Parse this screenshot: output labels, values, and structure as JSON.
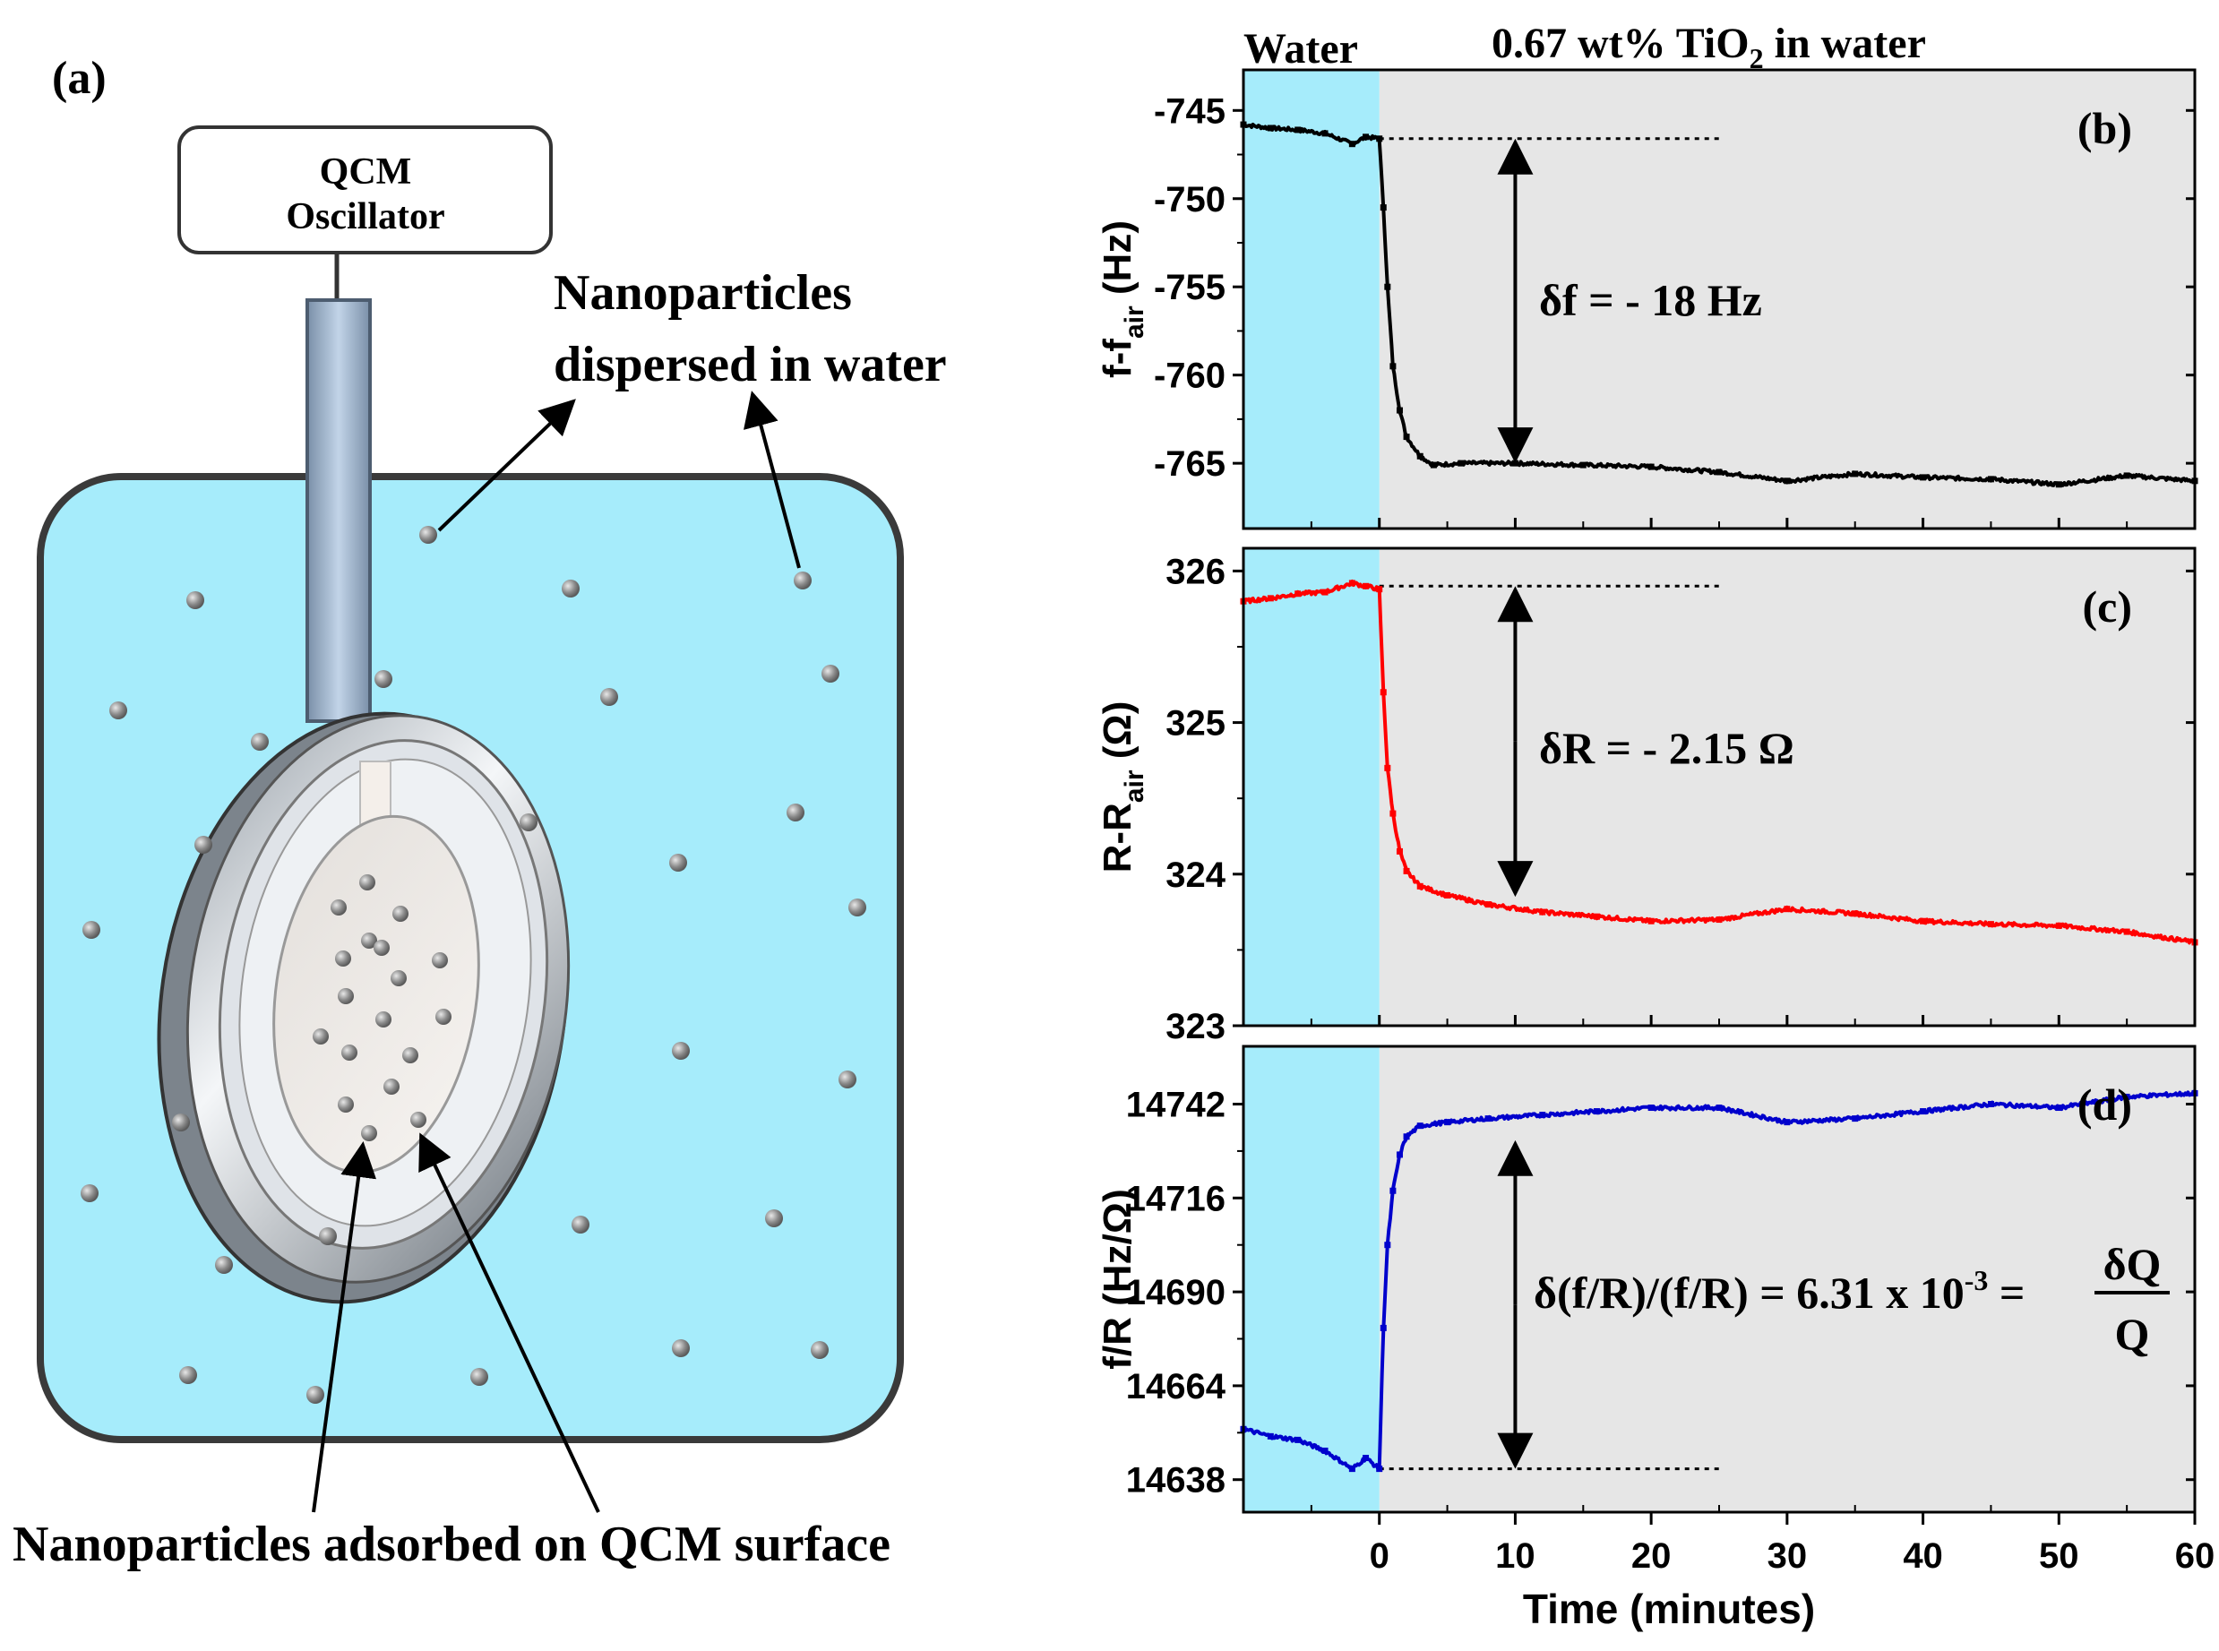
{
  "panel_a": {
    "label": "(a)",
    "oscillator_line1": "QCM",
    "oscillator_line2": "Oscillator",
    "dispersed_line1": "Nanoparticles",
    "dispersed_line2": "dispersed in water",
    "adsorbed_label": "Nanoparticles adsorbed on QCM surface"
  },
  "colors": {
    "water": "#a6ecfb",
    "shaded": "#e6e6e6",
    "frequency": "#000000",
    "resistance": "#ff0000",
    "ratio": "#0000cc"
  },
  "chart_data": {
    "type": "line",
    "top_labels": {
      "water": "Water",
      "solution_prefix": "0.67 wt% TiO",
      "solution_sub": "2",
      "solution_suffix": " in water"
    },
    "xlabel": "Time (minutes)",
    "xlim": [
      -10,
      60
    ],
    "xticks": [
      0,
      10,
      20,
      30,
      40,
      50,
      60
    ],
    "water_region": [
      -10,
      0
    ],
    "panels": [
      {
        "id": "b",
        "tag": "(b)",
        "color_key": "frequency",
        "ylabel_main": "f-f",
        "ylabel_sub": "air",
        "ylabel_unit": " (Hz)",
        "ylim": [
          -768.7,
          -742.7
        ],
        "yticks": [
          -745,
          -750,
          -755,
          -760,
          -765
        ],
        "baseline": -746.6,
        "plateau": -765.0,
        "end_value": -766.0,
        "annotation": "δf = - 18 Hz",
        "arrow": [
          -746.6,
          -765.0
        ],
        "arrow_x": 10,
        "dotted_level": -746.6,
        "dotted_range": [
          0,
          25
        ],
        "series": {
          "x": [
            -10,
            -8,
            -6,
            -4,
            -2,
            -1,
            0,
            0.3,
            0.6,
            1,
            1.5,
            2,
            3,
            4,
            6,
            10,
            15,
            20,
            25,
            30,
            35,
            40,
            45,
            50,
            55,
            60
          ],
          "y": [
            -745.8,
            -746.0,
            -746.1,
            -746.3,
            -746.9,
            -746.5,
            -746.6,
            -750.5,
            -755.0,
            -759.5,
            -762.0,
            -763.5,
            -764.6,
            -765.1,
            -765.0,
            -765.0,
            -765.1,
            -765.2,
            -765.5,
            -766.0,
            -765.6,
            -765.8,
            -765.9,
            -766.2,
            -765.7,
            -766.0
          ]
        }
      },
      {
        "id": "c",
        "tag": "(c)",
        "color_key": "resistance",
        "ylabel_main": "R-R",
        "ylabel_sub": "air",
        "ylabel_unit": " (Ω)",
        "ylim": [
          323,
          326.15
        ],
        "yticks": [
          323,
          324,
          325,
          326
        ],
        "baseline": 325.9,
        "plateau": 323.75,
        "end_value": 323.55,
        "annotation": "δR = - 2.15 Ω",
        "arrow": [
          325.9,
          323.85
        ],
        "arrow_x": 10,
        "dotted_level": 325.9,
        "dotted_range": [
          0,
          25
        ],
        "series": {
          "x": [
            -10,
            -8,
            -6,
            -4,
            -2,
            -1,
            0,
            0.3,
            0.6,
            1,
            1.5,
            2,
            3,
            5,
            8,
            12,
            16,
            20,
            25,
            30,
            35,
            40,
            45,
            50,
            55,
            60
          ],
          "y": [
            325.8,
            325.82,
            325.85,
            325.86,
            325.92,
            325.9,
            325.88,
            325.2,
            324.7,
            324.4,
            324.15,
            324.02,
            323.92,
            323.86,
            323.8,
            323.75,
            323.72,
            323.69,
            323.7,
            323.77,
            323.74,
            323.69,
            323.67,
            323.66,
            323.62,
            323.55
          ]
        }
      },
      {
        "id": "d",
        "tag": "(d)",
        "color_key": "ratio",
        "ylabel_main": "f/R (Hz/Ω)",
        "ylabel_sub": "",
        "ylabel_unit": "",
        "ylim": [
          14629,
          14758
        ],
        "yticks": [
          14638,
          14664,
          14690,
          14716,
          14742
        ],
        "baseline": 14641,
        "plateau": 14737,
        "end_value": 14745,
        "annotation": "δ(f/R)/(f/R) = 6.31 x 10",
        "annotation_exp": "-3",
        "annotation_eq": " =",
        "fraction_top": "δQ",
        "fraction_bottom": "Q",
        "arrow": [
          14641,
          14732
        ],
        "arrow_x": 10,
        "dotted_level": 14641,
        "dotted_range": [
          0,
          25
        ],
        "series": {
          "x": [
            -10,
            -8,
            -6,
            -4,
            -2,
            -1,
            0,
            0.3,
            0.6,
            1,
            1.5,
            2,
            3,
            5,
            8,
            12,
            16,
            20,
            25,
            30,
            35,
            40,
            45,
            50,
            55,
            60
          ],
          "y": [
            14652,
            14650,
            14649,
            14646,
            14641,
            14644,
            14641,
            14680,
            14703,
            14718,
            14728,
            14733,
            14736,
            14737,
            14738,
            14739,
            14740,
            14741,
            14741,
            14737,
            14738,
            14740,
            14742,
            14741,
            14744,
            14745
          ]
        }
      }
    ]
  }
}
